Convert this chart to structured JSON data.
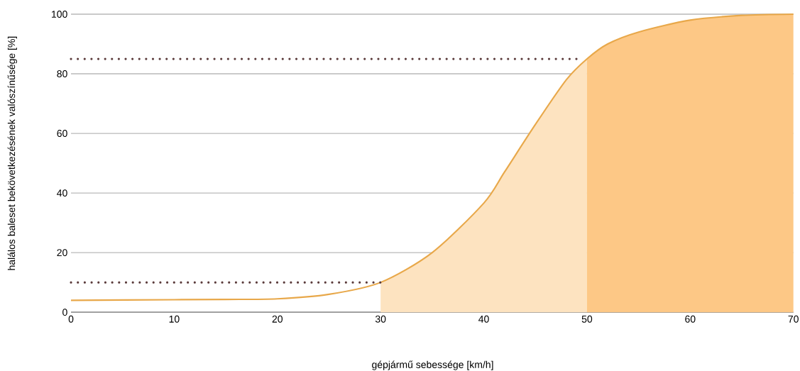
{
  "chart_data": {
    "type": "line",
    "xlabel": "gépjármű sebessége [km/h]",
    "ylabel": "halálos baleset bekövetkezésének valószínűsége [%]",
    "xlim": [
      0,
      70
    ],
    "xticks": [
      0,
      10,
      20,
      30,
      40,
      50,
      60,
      70
    ],
    "ylim": [
      0,
      100
    ],
    "yticks": [
      0,
      20,
      40,
      60,
      80,
      100
    ],
    "grid": "y",
    "legend": false,
    "series": [
      {
        "type": "area",
        "color": "#fde3c0",
        "x": [
          30,
          35,
          40,
          42,
          45,
          48,
          50
        ],
        "values": [
          10,
          20,
          36.6,
          47,
          63,
          78,
          85
        ]
      },
      {
        "type": "area",
        "color": "#fdc886",
        "x": [
          50,
          52,
          55,
          60,
          65,
          70
        ],
        "values": [
          85,
          90,
          94,
          98,
          99.6,
          100
        ]
      },
      {
        "color": "#e8a84a",
        "x": [
          0,
          10,
          15,
          20,
          25,
          30,
          35,
          40,
          42,
          45,
          48,
          50,
          52,
          55,
          60,
          65,
          70
        ],
        "values": [
          4,
          4.2,
          4.3,
          4.5,
          6,
          10,
          20,
          36.6,
          47,
          63,
          78,
          85,
          90,
          94,
          98,
          99.6,
          100
        ]
      },
      {
        "color": "#5a3a3a",
        "line_style": "dotted",
        "x": [
          0,
          30
        ],
        "values": [
          10,
          10
        ]
      },
      {
        "color": "#5a3a3a",
        "line_style": "dotted",
        "x": [
          0,
          49
        ],
        "values": [
          85,
          85
        ]
      }
    ]
  }
}
